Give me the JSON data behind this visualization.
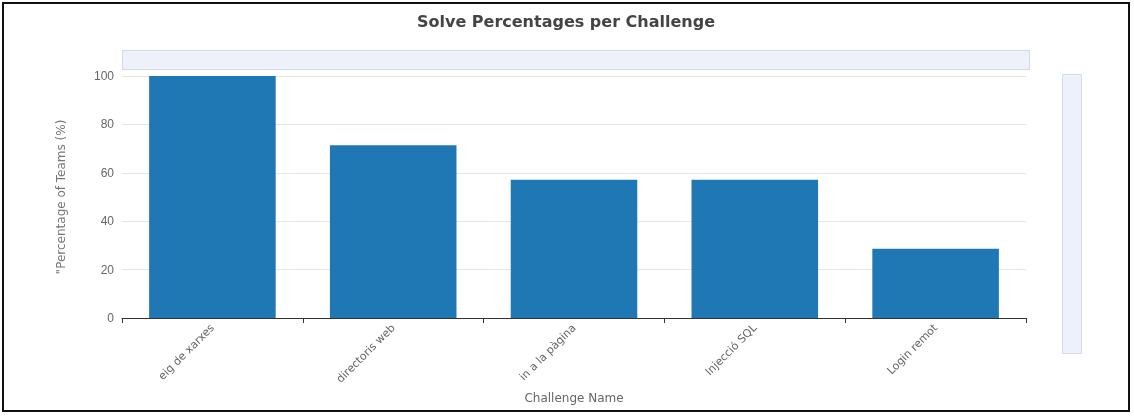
{
  "chart_data": {
    "type": "bar",
    "title": "Solve Percentages per Challenge",
    "xlabel": "Challenge Name",
    "ylabel": "\"Percentage of Teams (%)",
    "categories": [
      "eig de xarxes",
      "directoris web",
      "in a la pàgina",
      "Injecció SQL",
      "Login remot"
    ],
    "values": [
      100,
      71.4,
      57.1,
      57.1,
      28.6
    ],
    "color": "#1f77b4",
    "ylim": [
      0,
      100
    ],
    "yticks": [
      0,
      20,
      40,
      60,
      80,
      100
    ],
    "grid": "y"
  }
}
